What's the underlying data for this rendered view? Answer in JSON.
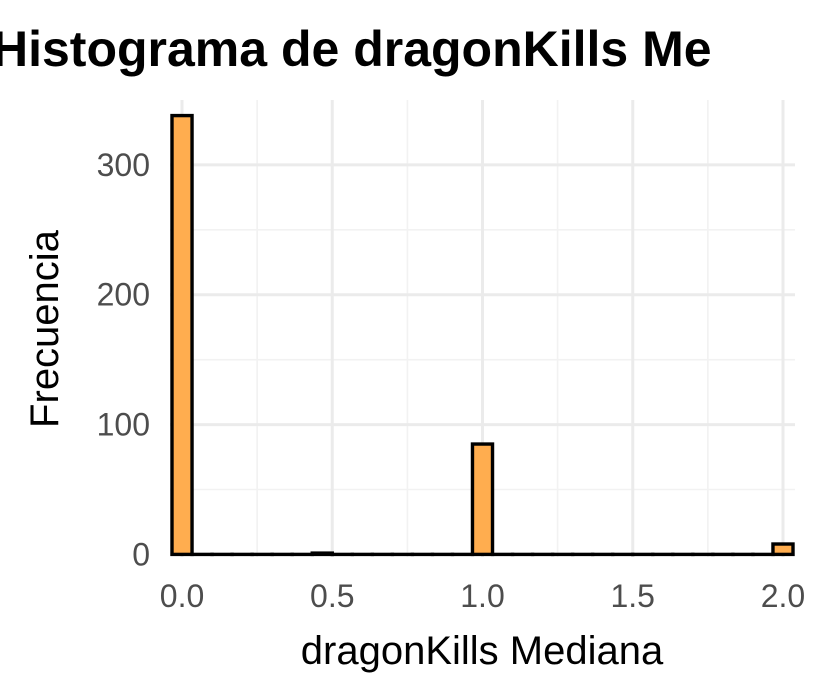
{
  "chart_data": {
    "type": "bar",
    "title": "Histograma de dragonKills Me",
    "xlabel": "dragonKills Mediana",
    "ylabel": "Frecuencia",
    "xlim": [
      -0.04,
      2.04
    ],
    "ylim": [
      -2,
      350
    ],
    "x_ticks": [
      0.0,
      0.5,
      1.0,
      1.5,
      2.0
    ],
    "x_tick_labels": [
      "0.0",
      "0.5",
      "1.0",
      "1.5",
      "2.0"
    ],
    "y_ticks": [
      0,
      100,
      200,
      300
    ],
    "y_tick_labels": [
      "0",
      "100",
      "200",
      "300"
    ],
    "grid": true,
    "bin_width": 0.0667,
    "bar_color": "#FFAD4F",
    "bar_edge_color": "#000000",
    "bins": [
      {
        "x": 0.0,
        "count": 338
      },
      {
        "x": 0.0667,
        "count": 0
      },
      {
        "x": 0.1333,
        "count": 0
      },
      {
        "x": 0.2,
        "count": 0
      },
      {
        "x": 0.2667,
        "count": 0
      },
      {
        "x": 0.3333,
        "count": 0
      },
      {
        "x": 0.4,
        "count": 0
      },
      {
        "x": 0.4667,
        "count": 1
      },
      {
        "x": 0.5333,
        "count": 0
      },
      {
        "x": 0.6,
        "count": 0
      },
      {
        "x": 0.6667,
        "count": 0
      },
      {
        "x": 0.7333,
        "count": 0
      },
      {
        "x": 0.8,
        "count": 0
      },
      {
        "x": 0.8667,
        "count": 0
      },
      {
        "x": 0.9333,
        "count": 0
      },
      {
        "x": 1.0,
        "count": 85
      },
      {
        "x": 1.0667,
        "count": 0
      },
      {
        "x": 1.1333,
        "count": 0
      },
      {
        "x": 1.2,
        "count": 0
      },
      {
        "x": 1.2667,
        "count": 0
      },
      {
        "x": 1.3333,
        "count": 0
      },
      {
        "x": 1.4,
        "count": 0
      },
      {
        "x": 1.4667,
        "count": 0
      },
      {
        "x": 1.5333,
        "count": 0
      },
      {
        "x": 1.6,
        "count": 0
      },
      {
        "x": 1.6667,
        "count": 0
      },
      {
        "x": 1.7333,
        "count": 0
      },
      {
        "x": 1.8,
        "count": 0
      },
      {
        "x": 1.8667,
        "count": 0
      },
      {
        "x": 1.9333,
        "count": 0
      },
      {
        "x": 2.0,
        "count": 8
      }
    ]
  }
}
